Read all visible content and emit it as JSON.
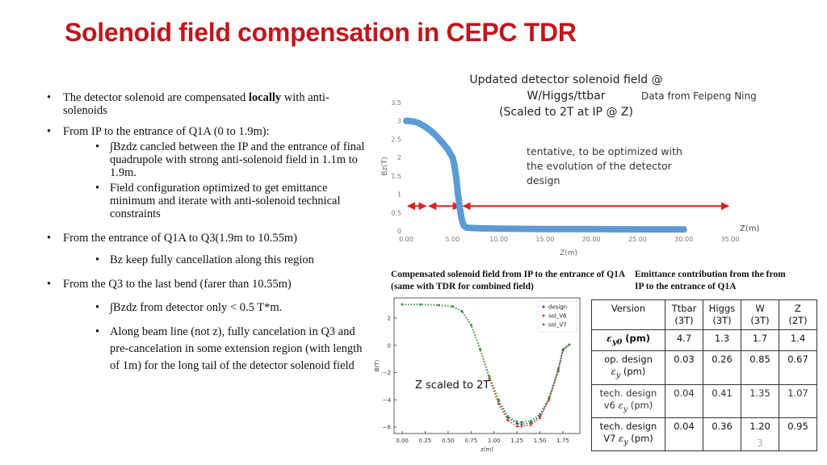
{
  "title": "Solenoid field compensation in CEPC TDR",
  "bullets": {
    "b1_pre": "The detector solenoid are compensated ",
    "b1_bold": "locally",
    "b1_post": " with anti-solenoids",
    "b2": "From IP to the entrance of Q1A (0 to 1.9m):",
    "b2_sub1": "∫Bzdz cancled between the IP and the entrance of final quadrupole with strong anti-solenoid field in 1.1m to 1.9m.",
    "b2_sub2": "Field configuration optimized to get emittance minimum and iterate with anti-solenoid technical constraints",
    "b3": "From the entrance of Q1A to Q3(1.9m to 10.55m)",
    "b3_sub1": "Bz keep fully cancellation along this region",
    "b4": "From the Q3 to the last bend (farer than 10.55m)",
    "b4_sub1": "∫Bzdz from detector only < 0.5 T*m.",
    "b4_sub2": "Along beam line (not z), fully cancelation in Q3 and pre-cancelation in some extension region (with length of 1m) for the long tail of the detector solenoid field"
  },
  "chart_data": [
    {
      "type": "line",
      "title": "Updated detector solenoid field @ W/Higgs/ttbar (Scaled to 2T at IP @ Z)",
      "title_lines": [
        "Updated detector solenoid field @",
        "W/Higgs/ttbar",
        "(Scaled to 2T at IP @ Z)"
      ],
      "source": "Data from Feipeng Ning",
      "annotation_lines": [
        "tentative, to be optimized with",
        "the evolution of the detector",
        "design"
      ],
      "xlabel": "Z(m)",
      "xlabel_right": "Z(m)",
      "ylabel": "Bz(T)",
      "xlim": [
        0,
        35
      ],
      "ylim": [
        0,
        3.5
      ],
      "xticks": [
        "0.00",
        "5.00",
        "10.00",
        "15.00",
        "20.00",
        "25.00",
        "30.00",
        "35.00"
      ],
      "yticks": [
        "0",
        "0.5",
        "1",
        "1.5",
        "2",
        "2.5",
        "3",
        "3.5"
      ],
      "grid": false,
      "series_color": "#5b9bd5",
      "arrow_color": "#e0201c",
      "x": [
        0,
        0.5,
        1.0,
        1.5,
        2.0,
        2.5,
        3.0,
        3.5,
        4.0,
        4.5,
        5.0,
        5.2,
        5.4,
        5.6,
        5.8,
        6.0,
        6.2,
        6.5,
        7.0,
        8.0,
        10.0,
        15.0,
        20.0,
        25.0,
        30.0
      ],
      "y": [
        3.0,
        2.99,
        2.97,
        2.92,
        2.85,
        2.76,
        2.65,
        2.52,
        2.38,
        2.22,
        2.0,
        1.8,
        1.45,
        1.0,
        0.6,
        0.32,
        0.15,
        0.09,
        0.08,
        0.07,
        0.06,
        0.05,
        0.05,
        0.04,
        0.04
      ],
      "arrows": [
        {
          "from": 0,
          "to": 2.3
        },
        {
          "from": 2.3,
          "to": 6.0
        },
        {
          "from": 6.0,
          "to": 35.0
        }
      ],
      "caption": "Compensated solenoid field from IP to the entrance of Q1A (same with TDR for combined field)"
    },
    {
      "type": "line",
      "xlabel": "z(m)",
      "ylabel": "B(T)",
      "xlim": [
        0,
        1.9
      ],
      "ylim": [
        -6.6,
        3
      ],
      "xticks": [
        "0.00",
        "0.25",
        "0.50",
        "0.75",
        "1.00",
        "1.25",
        "1.50",
        "1.75"
      ],
      "yticks": [
        "2",
        "0",
        "−2",
        "−4",
        "−6"
      ],
      "annotation": "Z scaled to 2T",
      "grid": false,
      "legend_position": "top-right",
      "series": [
        {
          "name": "design",
          "color": "#3a4aa0",
          "x": [
            0,
            0.2,
            0.4,
            0.55,
            0.65,
            0.75,
            0.85,
            0.95,
            1.05,
            1.15,
            1.25,
            1.3,
            1.4,
            1.5,
            1.6,
            1.7,
            1.75,
            1.82
          ],
          "y": [
            3.0,
            3.0,
            2.95,
            2.85,
            2.5,
            1.5,
            -0.3,
            -2.4,
            -4.1,
            -5.3,
            -5.75,
            -5.8,
            -5.7,
            -5.2,
            -3.9,
            -1.8,
            -0.3,
            0.05
          ]
        },
        {
          "name": "sol_V6",
          "color": "#e03a1e",
          "x": [
            0,
            0.2,
            0.4,
            0.55,
            0.65,
            0.75,
            0.85,
            0.95,
            1.05,
            1.15,
            1.25,
            1.3,
            1.4,
            1.5,
            1.6,
            1.7,
            1.75,
            1.82
          ],
          "y": [
            3.0,
            3.0,
            2.95,
            2.85,
            2.5,
            1.5,
            -0.3,
            -2.5,
            -4.3,
            -5.5,
            -5.95,
            -5.95,
            -5.85,
            -5.35,
            -4.0,
            -1.9,
            -0.4,
            0.05
          ]
        },
        {
          "name": "sol_V7",
          "color": "#2e9a3a",
          "x": [
            0,
            0.2,
            0.4,
            0.55,
            0.65,
            0.75,
            0.85,
            0.95,
            1.05,
            1.15,
            1.25,
            1.3,
            1.4,
            1.5,
            1.6,
            1.7,
            1.75,
            1.82
          ],
          "y": [
            3.0,
            3.0,
            2.95,
            2.85,
            2.5,
            1.5,
            -0.3,
            -2.3,
            -4.0,
            -5.2,
            -5.6,
            -5.65,
            -5.55,
            -5.05,
            -3.8,
            -1.7,
            -0.3,
            0.05
          ]
        }
      ]
    }
  ],
  "caption_right": "Emittance contribution from the from IP to the entrance of Q1A",
  "table": {
    "header": [
      {
        "line1": "Version",
        "line2": ""
      },
      {
        "line1": "Ttbar",
        "line2": "(3T)"
      },
      {
        "line1": "Higgs",
        "line2": "(3T)"
      },
      {
        "line1": "W",
        "line2": "(3T)"
      },
      {
        "line1": "Z",
        "line2": "(2T)"
      }
    ],
    "rows": [
      {
        "label_pre": "",
        "symbol": "ε",
        "sub": "y0",
        "label_post": " (pm)",
        "values": [
          "4.7",
          "1.3",
          "1.7",
          "1.4"
        ]
      },
      {
        "label_pre": "op. design",
        "symbol": "ε",
        "sub": "y",
        "label_post": " (pm)",
        "values": [
          "0.03",
          "0.26",
          "0.85",
          "0.67"
        ]
      },
      {
        "label_pre": "tech. design",
        "label_pre2": "v6",
        "symbol": "ε",
        "sub": "y",
        "label_post": " (pm)",
        "values": [
          "0.04",
          "0.41",
          "1.35",
          "1.07"
        ]
      },
      {
        "label_pre": "tech. design",
        "label_pre2": "V7",
        "symbol": "ε",
        "sub": "y",
        "label_post": " (pm)",
        "values": [
          "0.04",
          "0.36",
          "1.20",
          "0.95"
        ]
      }
    ]
  },
  "page_number": "3"
}
